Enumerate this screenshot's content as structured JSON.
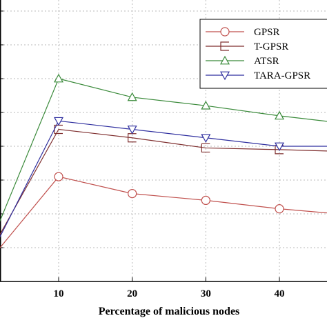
{
  "chart_data": {
    "type": "line",
    "xlabel": "Percentage of malicious nodes",
    "x": [
      0,
      10,
      20,
      30,
      40,
      50
    ],
    "x_ticks": [
      10,
      20,
      30,
      40
    ],
    "xlim": [
      0,
      50
    ],
    "ylim": [
      0,
      8
    ],
    "grid": true,
    "legend_position": "top-right",
    "series": [
      {
        "name": "GPSR",
        "marker": "circle",
        "color": "#c0504d",
        "values": [
          0.8,
          3.1,
          2.6,
          2.4,
          2.15,
          2.0
        ]
      },
      {
        "name": "T-GPSR",
        "marker": "square-open",
        "color": "#7f2f2f",
        "values": [
          1.1,
          4.5,
          4.25,
          3.95,
          3.9,
          3.85
        ]
      },
      {
        "name": "ATSR",
        "marker": "triangle-up",
        "color": "#3a8a3a",
        "values": [
          1.4,
          6.0,
          5.45,
          5.2,
          4.9,
          4.7
        ]
      },
      {
        "name": "TARA-GPSR",
        "marker": "triangle-down",
        "color": "#2f2f9f",
        "values": [
          1.0,
          4.75,
          4.5,
          4.25,
          4.0,
          4.0
        ]
      }
    ]
  }
}
